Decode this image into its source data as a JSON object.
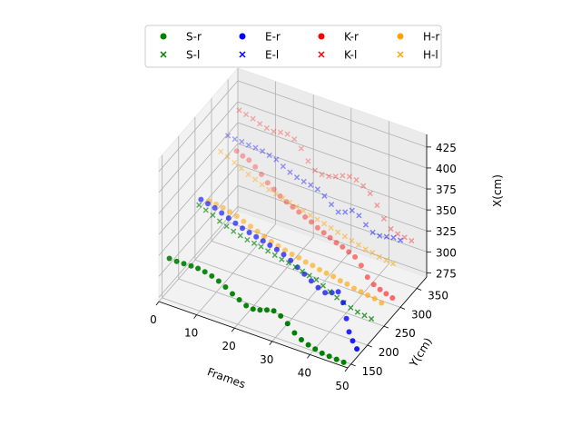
{
  "chart_data": {
    "type": "scatter",
    "projection": "3d",
    "xlabel": "Frames",
    "ylabel": "Y(cm)",
    "zlabel": "X(cm)",
    "xlim": [
      0,
      50
    ],
    "ylim": [
      140,
      380
    ],
    "zlim": [
      270,
      440
    ],
    "xticks": [
      "0",
      "10",
      "20",
      "30",
      "40",
      "50"
    ],
    "yticks": [
      "150",
      "200",
      "250",
      "300",
      "350"
    ],
    "zticks": [
      "275",
      "300",
      "325",
      "350",
      "375",
      "400",
      "425"
    ],
    "grid": true,
    "legend_position": "top",
    "legend_columns": 4,
    "series": [
      {
        "name": "S-r",
        "marker": "circle",
        "color": "#008000",
        "x": [
          0,
          2,
          4,
          6,
          8,
          10,
          12,
          14,
          16,
          18,
          20,
          22,
          24,
          26,
          28,
          30,
          32,
          34,
          36,
          38,
          40,
          42,
          44,
          46,
          48,
          50
        ],
        "y": [
          172,
          171,
          170,
          169,
          167,
          165,
          163,
          161,
          159,
          157,
          155,
          153,
          151,
          149,
          147,
          145,
          143,
          141,
          139,
          137,
          135,
          133,
          131,
          130,
          129,
          128
        ],
        "z": [
          307,
          307,
          308,
          309,
          310,
          310,
          309,
          307,
          304,
          300,
          297,
          294,
          294,
          297,
          301,
          304,
          302,
          297,
          290,
          286,
          284,
          283,
          282,
          282,
          282,
          282
        ]
      },
      {
        "name": "E-r",
        "marker": "circle",
        "color": "#0000ff",
        "x": [
          0,
          2,
          4,
          6,
          8,
          10,
          12,
          14,
          16,
          18,
          20,
          22,
          24,
          26,
          28,
          30,
          32,
          34,
          36,
          38,
          40,
          42,
          44,
          46,
          48,
          50
        ],
        "y": [
          268,
          266,
          264,
          262,
          260,
          258,
          256,
          254,
          252,
          250,
          248,
          246,
          244,
          242,
          240,
          238,
          236,
          234,
          232,
          230,
          226,
          218,
          205,
          190,
          178,
          168
        ],
        "z": [
          334,
          333,
          332,
          330,
          328,
          326,
          324,
          323,
          322,
          321,
          320,
          319,
          317,
          314,
          310,
          306,
          302,
          298,
          296,
          300,
          306,
          300,
          290,
          284,
          282,
          280
        ]
      },
      {
        "name": "K-r",
        "marker": "circle",
        "color": "#ff0000",
        "x": [
          0,
          2,
          4,
          6,
          8,
          10,
          12,
          14,
          16,
          18,
          20,
          22,
          24,
          26,
          28,
          30,
          32,
          34,
          36,
          38,
          40,
          42,
          44,
          46,
          48,
          50
        ],
        "y": [
          376,
          372,
          368,
          364,
          360,
          356,
          352,
          348,
          344,
          340,
          336,
          332,
          328,
          324,
          320,
          316,
          312,
          308,
          304,
          300,
          296,
          292,
          288,
          284,
          280,
          276
        ],
        "z": [
          343,
          342,
          342,
          339,
          335,
          330,
          327,
          324,
          322,
          321,
          320,
          319,
          318,
          316,
          315,
          314,
          313,
          313,
          312,
          311,
          306,
          297,
          293,
          292,
          292,
          292
        ]
      },
      {
        "name": "H-r",
        "marker": "circle",
        "color": "#ffa500",
        "x": [
          0,
          2,
          4,
          6,
          8,
          10,
          12,
          14,
          16,
          18,
          20,
          22,
          24,
          26,
          28,
          30,
          32,
          34,
          36,
          38,
          40,
          42,
          44,
          46,
          48,
          50
        ],
        "y": [
          293,
          291,
          289,
          287,
          285,
          283,
          281,
          279,
          277,
          275,
          273,
          271,
          269,
          267,
          265,
          263,
          261,
          259,
          257,
          255,
          253,
          251,
          249,
          247,
          245,
          243
        ],
        "z": [
          321,
          321,
          321,
          320,
          319,
          317,
          315,
          313,
          311,
          309,
          308,
          307,
          306,
          306,
          305,
          305,
          304,
          304,
          304,
          303,
          303,
          302,
          302,
          302,
          302,
          301
        ]
      },
      {
        "name": "S-l",
        "marker": "x",
        "color": "#008000",
        "x": [
          0,
          2,
          4,
          6,
          8,
          10,
          12,
          14,
          16,
          18,
          20,
          22,
          24,
          26,
          28,
          30,
          32,
          34,
          36,
          38,
          40,
          42,
          44,
          46,
          48,
          50
        ],
        "y": [
          262,
          260,
          258,
          256,
          254,
          252,
          250,
          248,
          246,
          244,
          242,
          240,
          238,
          236,
          234,
          232,
          230,
          228,
          226,
          224,
          222,
          220,
          218,
          216,
          214,
          212
        ],
        "z": [
          330,
          328,
          326,
          323,
          321,
          319,
          318,
          317,
          317,
          317,
          316,
          315,
          314,
          314,
          313,
          312,
          311,
          310,
          307,
          304,
          301,
          299,
          297,
          296,
          296,
          296
        ]
      },
      {
        "name": "E-l",
        "marker": "x",
        "color": "#0000ff",
        "x": [
          0,
          2,
          4,
          6,
          8,
          10,
          12,
          14,
          16,
          18,
          20,
          22,
          24,
          26,
          28,
          30,
          32,
          34,
          36,
          38,
          40,
          42,
          44,
          46,
          48,
          50
        ],
        "y": [
          350,
          348,
          346,
          344,
          342,
          340,
          338,
          336,
          334,
          332,
          330,
          328,
          326,
          324,
          322,
          320,
          318,
          316,
          314,
          312,
          310,
          308,
          306,
          304,
          302,
          300
        ],
        "z": [
          373,
          373,
          374,
          374,
          375,
          375,
          374,
          373,
          369,
          366,
          364,
          363,
          363,
          362,
          358,
          352,
          347,
          351,
          357,
          355,
          348,
          343,
          343,
          346,
          349,
          350
        ]
      },
      {
        "name": "K-l",
        "marker": "x",
        "color": "#ff0000",
        "x": [
          0,
          2,
          4,
          6,
          8,
          10,
          12,
          14,
          16,
          18,
          20,
          22,
          24,
          26,
          28,
          30,
          32,
          34,
          36,
          38,
          40,
          42,
          44,
          46,
          48,
          50
        ],
        "y": [
          384,
          382,
          380,
          378,
          376,
          374,
          372,
          370,
          368,
          366,
          364,
          362,
          360,
          358,
          356,
          354,
          352,
          350,
          348,
          346,
          344,
          342,
          340,
          338,
          336,
          334
        ],
        "z": [
          388,
          387,
          386,
          384,
          383,
          383,
          386,
          388,
          386,
          379,
          368,
          361,
          360,
          362,
          366,
          371,
          374,
          374,
          371,
          366,
          356,
          344,
          336,
          334,
          334,
          334
        ]
      },
      {
        "name": "H-l",
        "marker": "x",
        "color": "#ffa500",
        "x": [
          0,
          2,
          4,
          6,
          8,
          10,
          12,
          14,
          16,
          18,
          20,
          22,
          24,
          26,
          28,
          30,
          32,
          34,
          36,
          38,
          40,
          42,
          44,
          46,
          48,
          50
        ],
        "y": [
          328,
          326,
          324,
          322,
          320,
          318,
          316,
          314,
          312,
          310,
          308,
          306,
          304,
          302,
          300,
          298,
          296,
          294,
          292,
          290,
          288,
          286,
          284,
          282,
          280,
          278
        ],
        "z": [
          364,
          362,
          359,
          356,
          353,
          351,
          349,
          347,
          346,
          345,
          344,
          343,
          342,
          341,
          340,
          339,
          338,
          337,
          336,
          335,
          334,
          333,
          333,
          332,
          332,
          332
        ]
      }
    ]
  }
}
